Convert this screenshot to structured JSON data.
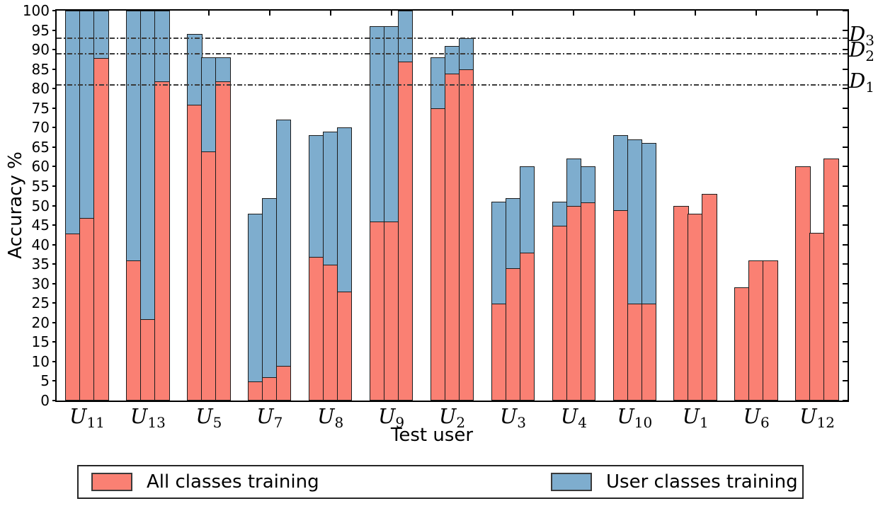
{
  "chart_data": {
    "type": "bar",
    "stacked": true,
    "title": "",
    "xlabel": "Test user",
    "ylabel": "Accuracy %",
    "ylim": [
      0,
      100
    ],
    "ytick_step": 5,
    "grid": false,
    "legend_position": "bottom",
    "bar_edge_color": "#1c1c1c",
    "reference_line_color": "#3a3a3a",
    "series": [
      {
        "name": "All classes training",
        "color": "#fa8073",
        "role": "bottom-segment"
      },
      {
        "name": "User classes training",
        "color": "#7eadce",
        "role": "top-segment"
      }
    ],
    "users": [
      {
        "base": "U",
        "sub": "11",
        "bars": [
          {
            "all_classes": 43,
            "user_classes": 100
          },
          {
            "all_classes": 47,
            "user_classes": 100
          },
          {
            "all_classes": 88,
            "user_classes": 100
          }
        ]
      },
      {
        "base": "U",
        "sub": "13",
        "bars": [
          {
            "all_classes": 36,
            "user_classes": 100
          },
          {
            "all_classes": 21,
            "user_classes": 100
          },
          {
            "all_classes": 82,
            "user_classes": 100
          }
        ]
      },
      {
        "base": "U",
        "sub": "5",
        "bars": [
          {
            "all_classes": 76,
            "user_classes": 94
          },
          {
            "all_classes": 64,
            "user_classes": 88
          },
          {
            "all_classes": 82,
            "user_classes": 88
          }
        ]
      },
      {
        "base": "U",
        "sub": "7",
        "bars": [
          {
            "all_classes": 5,
            "user_classes": 48
          },
          {
            "all_classes": 6,
            "user_classes": 52
          },
          {
            "all_classes": 9,
            "user_classes": 72
          }
        ]
      },
      {
        "base": "U",
        "sub": "8",
        "bars": [
          {
            "all_classes": 37,
            "user_classes": 68
          },
          {
            "all_classes": 35,
            "user_classes": 69
          },
          {
            "all_classes": 28,
            "user_classes": 70
          }
        ]
      },
      {
        "base": "U",
        "sub": "9",
        "bars": [
          {
            "all_classes": 46,
            "user_classes": 96
          },
          {
            "all_classes": 46,
            "user_classes": 96
          },
          {
            "all_classes": 87,
            "user_classes": 100
          }
        ]
      },
      {
        "base": "U",
        "sub": "2",
        "bars": [
          {
            "all_classes": 75,
            "user_classes": 88
          },
          {
            "all_classes": 84,
            "user_classes": 91
          },
          {
            "all_classes": 85,
            "user_classes": 93
          }
        ]
      },
      {
        "base": "U",
        "sub": "3",
        "bars": [
          {
            "all_classes": 25,
            "user_classes": 51
          },
          {
            "all_classes": 34,
            "user_classes": 52
          },
          {
            "all_classes": 38,
            "user_classes": 60
          }
        ]
      },
      {
        "base": "U",
        "sub": "4",
        "bars": [
          {
            "all_classes": 45,
            "user_classes": 51
          },
          {
            "all_classes": 50,
            "user_classes": 62
          },
          {
            "all_classes": 51,
            "user_classes": 60
          }
        ]
      },
      {
        "base": "U",
        "sub": "10",
        "bars": [
          {
            "all_classes": 49,
            "user_classes": 68
          },
          {
            "all_classes": 25,
            "user_classes": 67
          },
          {
            "all_classes": 25,
            "user_classes": 66
          }
        ]
      },
      {
        "base": "U",
        "sub": "1",
        "bars": [
          {
            "all_classes": 50,
            "user_classes": null
          },
          {
            "all_classes": 48,
            "user_classes": null
          },
          {
            "all_classes": 53,
            "user_classes": null
          }
        ]
      },
      {
        "base": "U",
        "sub": "6",
        "bars": [
          {
            "all_classes": 29,
            "user_classes": null
          },
          {
            "all_classes": 36,
            "user_classes": null
          },
          {
            "all_classes": 36,
            "user_classes": null
          }
        ]
      },
      {
        "base": "U",
        "sub": "12",
        "bars": [
          {
            "all_classes": 60,
            "user_classes": null
          },
          {
            "all_classes": 43,
            "user_classes": null
          },
          {
            "all_classes": 62,
            "user_classes": null
          }
        ]
      }
    ],
    "reference_lines": [
      {
        "base": "D",
        "sub": "1",
        "y": 81
      },
      {
        "base": "D",
        "sub": "2",
        "y": 89
      },
      {
        "base": "D",
        "sub": "3",
        "y": 93
      }
    ]
  }
}
